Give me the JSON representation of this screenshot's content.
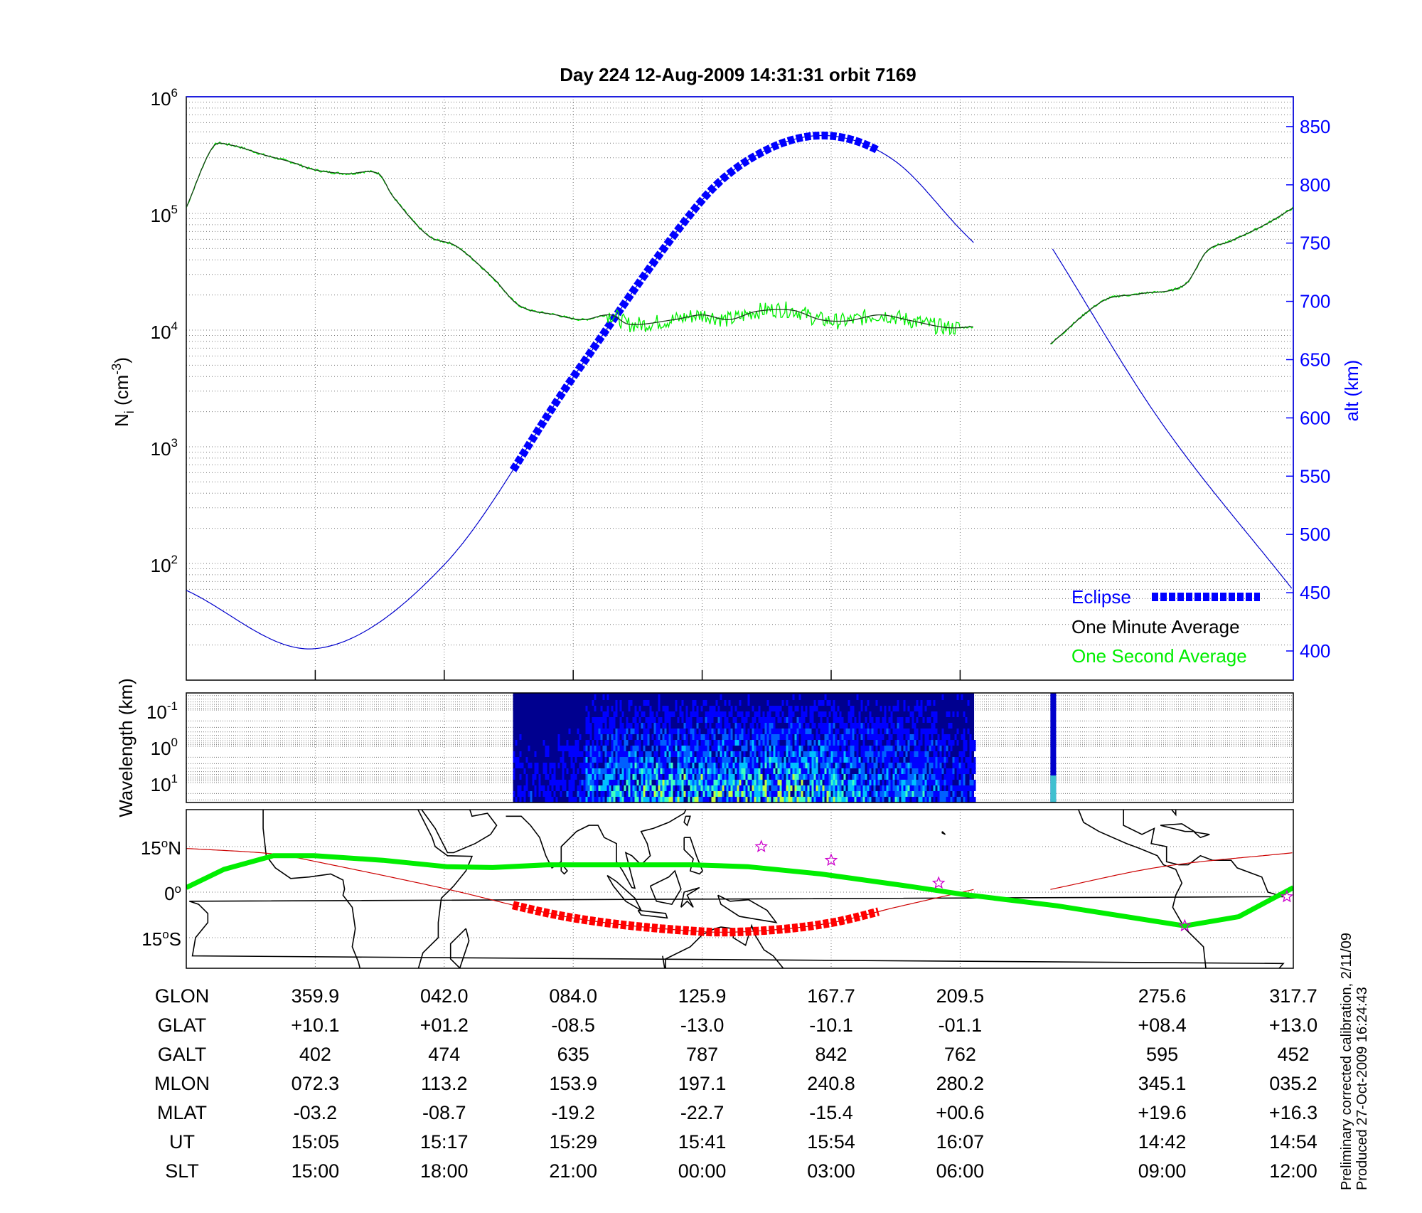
{
  "chart_data": [
    {
      "type": "line",
      "title": "Day 224  12-Aug-2009 14:31:31   orbit 7169",
      "xlabel": "",
      "x_units": "minutes from left edge of plot",
      "xlim": [
        0,
        103
      ],
      "ylabel_left": {
        "main": "N",
        "sub": "i",
        "rest": " (cm",
        "sup": "-3",
        "close": ")"
      },
      "ylabel_right": "alt (km)",
      "yscale_left": "log",
      "ylim_left": [
        19,
        1000000
      ],
      "ylim_right": [
        375,
        876
      ],
      "yticks_left": [
        {
          "base": "10",
          "exp": "6",
          "value": 1000000
        },
        {
          "base": "10",
          "exp": "5",
          "value": 100000
        },
        {
          "base": "10",
          "exp": "4",
          "value": 10000
        },
        {
          "base": "10",
          "exp": "3",
          "value": 1000
        },
        {
          "base": "10",
          "exp": "2",
          "value": 100
        }
      ],
      "yticks_right": [
        "850",
        "800",
        "750",
        "700",
        "650",
        "600",
        "550",
        "500",
        "450",
        "400"
      ],
      "grid": true,
      "legend_position": "bottom-right",
      "legend": [
        {
          "label": "Eclipse",
          "color": "#0000ff"
        },
        {
          "label": "One Minute Average",
          "color": "#000000"
        },
        {
          "label": "One Second Average",
          "color": "#00ee00"
        }
      ],
      "series": [
        {
          "name": "One Minute Average (Ni)",
          "color": "#1a4d1a",
          "segments": [
            [
              [
                0,
                112000
              ],
              [
                2.4,
                363000
              ],
              [
                3.9,
                389000
              ],
              [
                7.3,
                316000
              ],
              [
                9.8,
                275000
              ],
              [
                11.9,
                237000
              ],
              [
                14.9,
                219000
              ],
              [
                17.9,
                219000
              ],
              [
                19.2,
                141000
              ],
              [
                22.5,
                64600
              ],
              [
                25.1,
                52500
              ],
              [
                28.5,
                28200
              ],
              [
                31.0,
                16200
              ],
              [
                34.4,
                13500
              ],
              [
                36.9,
                12300
              ],
              [
                39.5,
                13500
              ],
              [
                41.2,
                11200
              ],
              [
                45.4,
                12300
              ],
              [
                48.0,
                13500
              ],
              [
                50.5,
                12300
              ],
              [
                53.1,
                14500
              ],
              [
                56.4,
                14800
              ],
              [
                59.0,
                12300
              ],
              [
                61.5,
                12000
              ],
              [
                64.5,
                13500
              ],
              [
                67.5,
                12000
              ],
              [
                70.8,
                10500
              ],
              [
                73.3,
                10700
              ]
            ],
            [
              [
                80.4,
                7600
              ],
              [
                85.3,
                17800
              ],
              [
                88.6,
                20400
              ],
              [
                92.9,
                24500
              ],
              [
                95.0,
                47900
              ],
              [
                97.1,
                57500
              ],
              [
                100.5,
                81300
              ],
              [
                103,
                112000
              ]
            ]
          ]
        },
        {
          "name": "One Second Average (Ni)",
          "color": "#00ee00",
          "note": "follows one-minute average with added fluctuation between 39 and 72 min"
        },
        {
          "name": "Altitude (km)",
          "color": "#0000cc",
          "segments": [
            [
              [
                0,
                452
              ],
              [
                12,
                402
              ],
              [
                24,
                474
              ],
              [
                36,
                635
              ],
              [
                48,
                787
              ],
              [
                54,
                830
              ],
              [
                60,
                842
              ],
              [
                66,
                820
              ],
              [
                72,
                762
              ],
              [
                73.3,
                750
              ]
            ],
            [
              [
                80.6,
                745
              ],
              [
                90.8,
                595
              ],
              [
                103,
                452
              ]
            ]
          ]
        },
        {
          "name": "Eclipse",
          "color": "#0000ff",
          "x_range": [
            30.4,
            64.5
          ]
        }
      ]
    },
    {
      "type": "heatmap",
      "ylabel": "Wavelength (km)",
      "yscale": "log",
      "ylim": [
        0.06,
        31
      ],
      "yaxis_inverted": true,
      "yticks": [
        {
          "base": "10",
          "exp": "-1"
        },
        {
          "base": "10",
          "exp": "0"
        },
        {
          "base": "10",
          "exp": "1"
        }
      ],
      "data_x_ranges": [
        [
          30.4,
          73.3
        ],
        [
          80.4,
          80.8
        ]
      ],
      "colormap": [
        "#00008f",
        "#0000ff",
        "#0060ff",
        "#00c0ff",
        "#40ffc0",
        "#c0ff40"
      ]
    },
    {
      "type": "line",
      "kind": "map",
      "ylim": [
        -25,
        27
      ],
      "yticks": [
        {
          "deg": "15",
          "hem": "N",
          "value": 15
        },
        {
          "deg": "0",
          "hem": "",
          "value": 0
        },
        {
          "deg": "15",
          "hem": "S",
          "value": -15
        }
      ],
      "series": [
        {
          "name": "Satellite ground track (GLAT)",
          "color": "#cc0000",
          "segments": [
            [
              [
                0,
                14.4
              ],
              [
                8.1,
                12.6
              ],
              [
                12,
                10.1
              ],
              [
                24,
                1.2
              ],
              [
                36,
                -8.5
              ],
              [
                48,
                -13.0
              ],
              [
                54,
                -12.6
              ],
              [
                60,
                -10.1
              ],
              [
                66,
                -5.0
              ],
              [
                73.3,
                0.9
              ]
            ],
            [
              [
                80.4,
                0.9
              ],
              [
                90.8,
                8.4
              ],
              [
                103,
                13.0
              ]
            ]
          ]
        },
        {
          "name": "Eclipse track",
          "color": "#ff0000",
          "x_range": [
            30.4,
            64.5
          ]
        },
        {
          "name": "Magnetic equator",
          "color": "#00ee00",
          "points": [
            [
              0,
              1.5
            ],
            [
              3.5,
              7.5
            ],
            [
              8.1,
              12
            ],
            [
              11.9,
              12
            ],
            [
              18.3,
              10.5
            ],
            [
              24.2,
              8.4
            ],
            [
              28.5,
              8.1
            ],
            [
              33.6,
              9
            ],
            [
              40.3,
              9
            ],
            [
              47.1,
              9
            ],
            [
              52.2,
              8.4
            ],
            [
              59,
              6
            ],
            [
              67.5,
              1.8
            ],
            [
              72,
              -0.6
            ],
            [
              81,
              -4.5
            ],
            [
              92.9,
              -11.1
            ],
            [
              97.9,
              -8.1
            ],
            [
              103,
              1.5
            ]
          ]
        },
        {
          "name": "Stations",
          "color": "#cc00cc",
          "marker": "star",
          "points": [
            [
              53.5,
              15
            ],
            [
              60,
              10.5
            ],
            [
              70,
              3
            ],
            [
              92.9,
              -11.1
            ],
            [
              102.4,
              -1.5
            ]
          ]
        }
      ]
    }
  ],
  "table": {
    "rows": [
      {
        "label": "GLON",
        "values": [
          "359.9",
          "042.0",
          "084.0",
          "125.9",
          "167.7",
          "209.5",
          "275.6",
          "317.7"
        ]
      },
      {
        "label": "GLAT",
        "values": [
          "+10.1",
          "+01.2",
          "-08.5",
          "-13.0",
          "-10.1",
          "-01.1",
          "+08.4",
          "+13.0"
        ]
      },
      {
        "label": "GALT",
        "values": [
          "402",
          "474",
          "635",
          "787",
          "842",
          "762",
          "595",
          "452"
        ]
      },
      {
        "label": "MLON",
        "values": [
          "072.3",
          "113.2",
          "153.9",
          "197.1",
          "240.8",
          "280.2",
          "345.1",
          "035.2"
        ]
      },
      {
        "label": "MLAT",
        "values": [
          "-03.2",
          "-08.7",
          "-19.2",
          "-22.7",
          "-15.4",
          "+00.6",
          "+19.6",
          "+16.3"
        ]
      },
      {
        "label": "UT",
        "values": [
          "15:05",
          "15:17",
          "15:29",
          "15:41",
          "15:54",
          "16:07",
          "14:42",
          "14:54"
        ]
      },
      {
        "label": "SLT",
        "values": [
          "15:00",
          "18:00",
          "21:00",
          "00:00",
          "03:00",
          "06:00",
          "09:00",
          "12:00"
        ]
      }
    ]
  },
  "footer": {
    "line1": "Preliminary corrected calibration, 2/11/09",
    "line2": "Produced 27-Oct-2009 16:24:43"
  }
}
